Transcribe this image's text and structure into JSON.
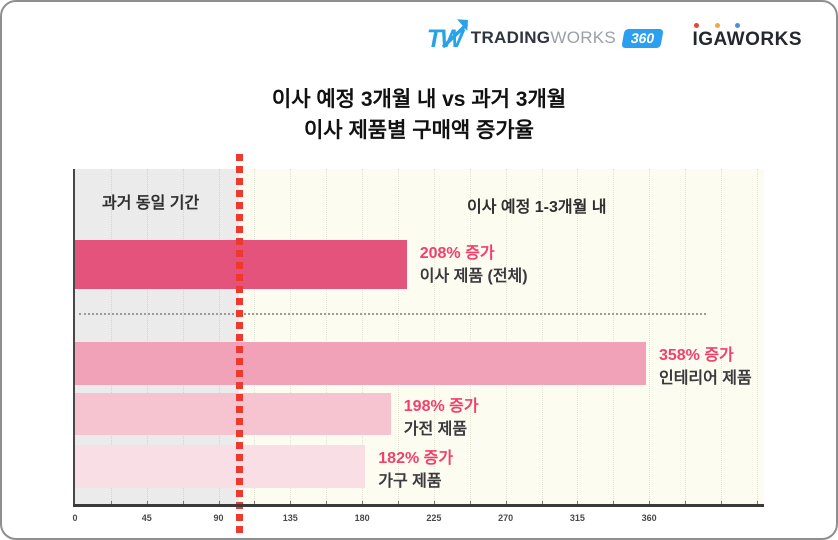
{
  "logos": {
    "tradingworks": {
      "mark": "TW",
      "name_bold": "TRADING",
      "name_light": "WORKS",
      "badge": "360",
      "brand_blue": "#29a3e8",
      "badge_blue": "#2b9ff0"
    },
    "igaworks": {
      "name": "IGAWORKS",
      "dot_colors": [
        "#e8423a",
        "#f0a93a",
        "#4a90d9"
      ]
    }
  },
  "title": {
    "line1": "이사 예정 3개월 내 vs 과거 3개월",
    "line2": "이사 제품별 구매액 증가율"
  },
  "chart_data": {
    "type": "bar",
    "orientation": "horizontal",
    "title": "이사 예정 3개월 내 vs 과거 3개월 이사 제품별 구매액 증가율",
    "left_region_label": "과거 동일 기간",
    "right_region_label": "이사 예정 1-3개월 내",
    "x_ticks": [
      0,
      45,
      90,
      135,
      180,
      225,
      270,
      315,
      360
    ],
    "x_max": 432,
    "grid_step": 22.5,
    "grid": true,
    "legend": "none",
    "categories": [
      "이사 제품 (전체)",
      "인테리어 제품",
      "가전 제품",
      "가구 제품"
    ],
    "values": [
      208,
      358,
      198,
      182
    ],
    "bars": [
      {
        "category": "이사 제품 (전체)",
        "value": 208,
        "value_label": "208% 증가",
        "color": "#e4537b"
      },
      {
        "category": "인테리어 제품",
        "value": 358,
        "value_label": "358% 증가",
        "color": "#f1a1b8"
      },
      {
        "category": "가전 제품",
        "value": 198,
        "value_label": "198% 증가",
        "color": "#f6c3d1"
      },
      {
        "category": "가구 제품",
        "value": 182,
        "value_label": "182% 증가",
        "color": "#fadee5"
      }
    ],
    "colors": {
      "value_text": "#f23f6b",
      "category_text": "#3a3a3e",
      "baseline_line": "#ee3a2e",
      "past_region_bg": "#ebebeb",
      "future_region_bg": "#fdfcf0",
      "axis": "#3f3f3f"
    }
  }
}
